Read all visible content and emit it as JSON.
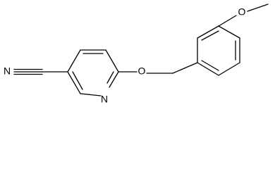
{
  "atoms": {
    "nitrile_n": "N",
    "ring_n": "N",
    "ether_o": "O",
    "methoxy_o": "O"
  }
}
